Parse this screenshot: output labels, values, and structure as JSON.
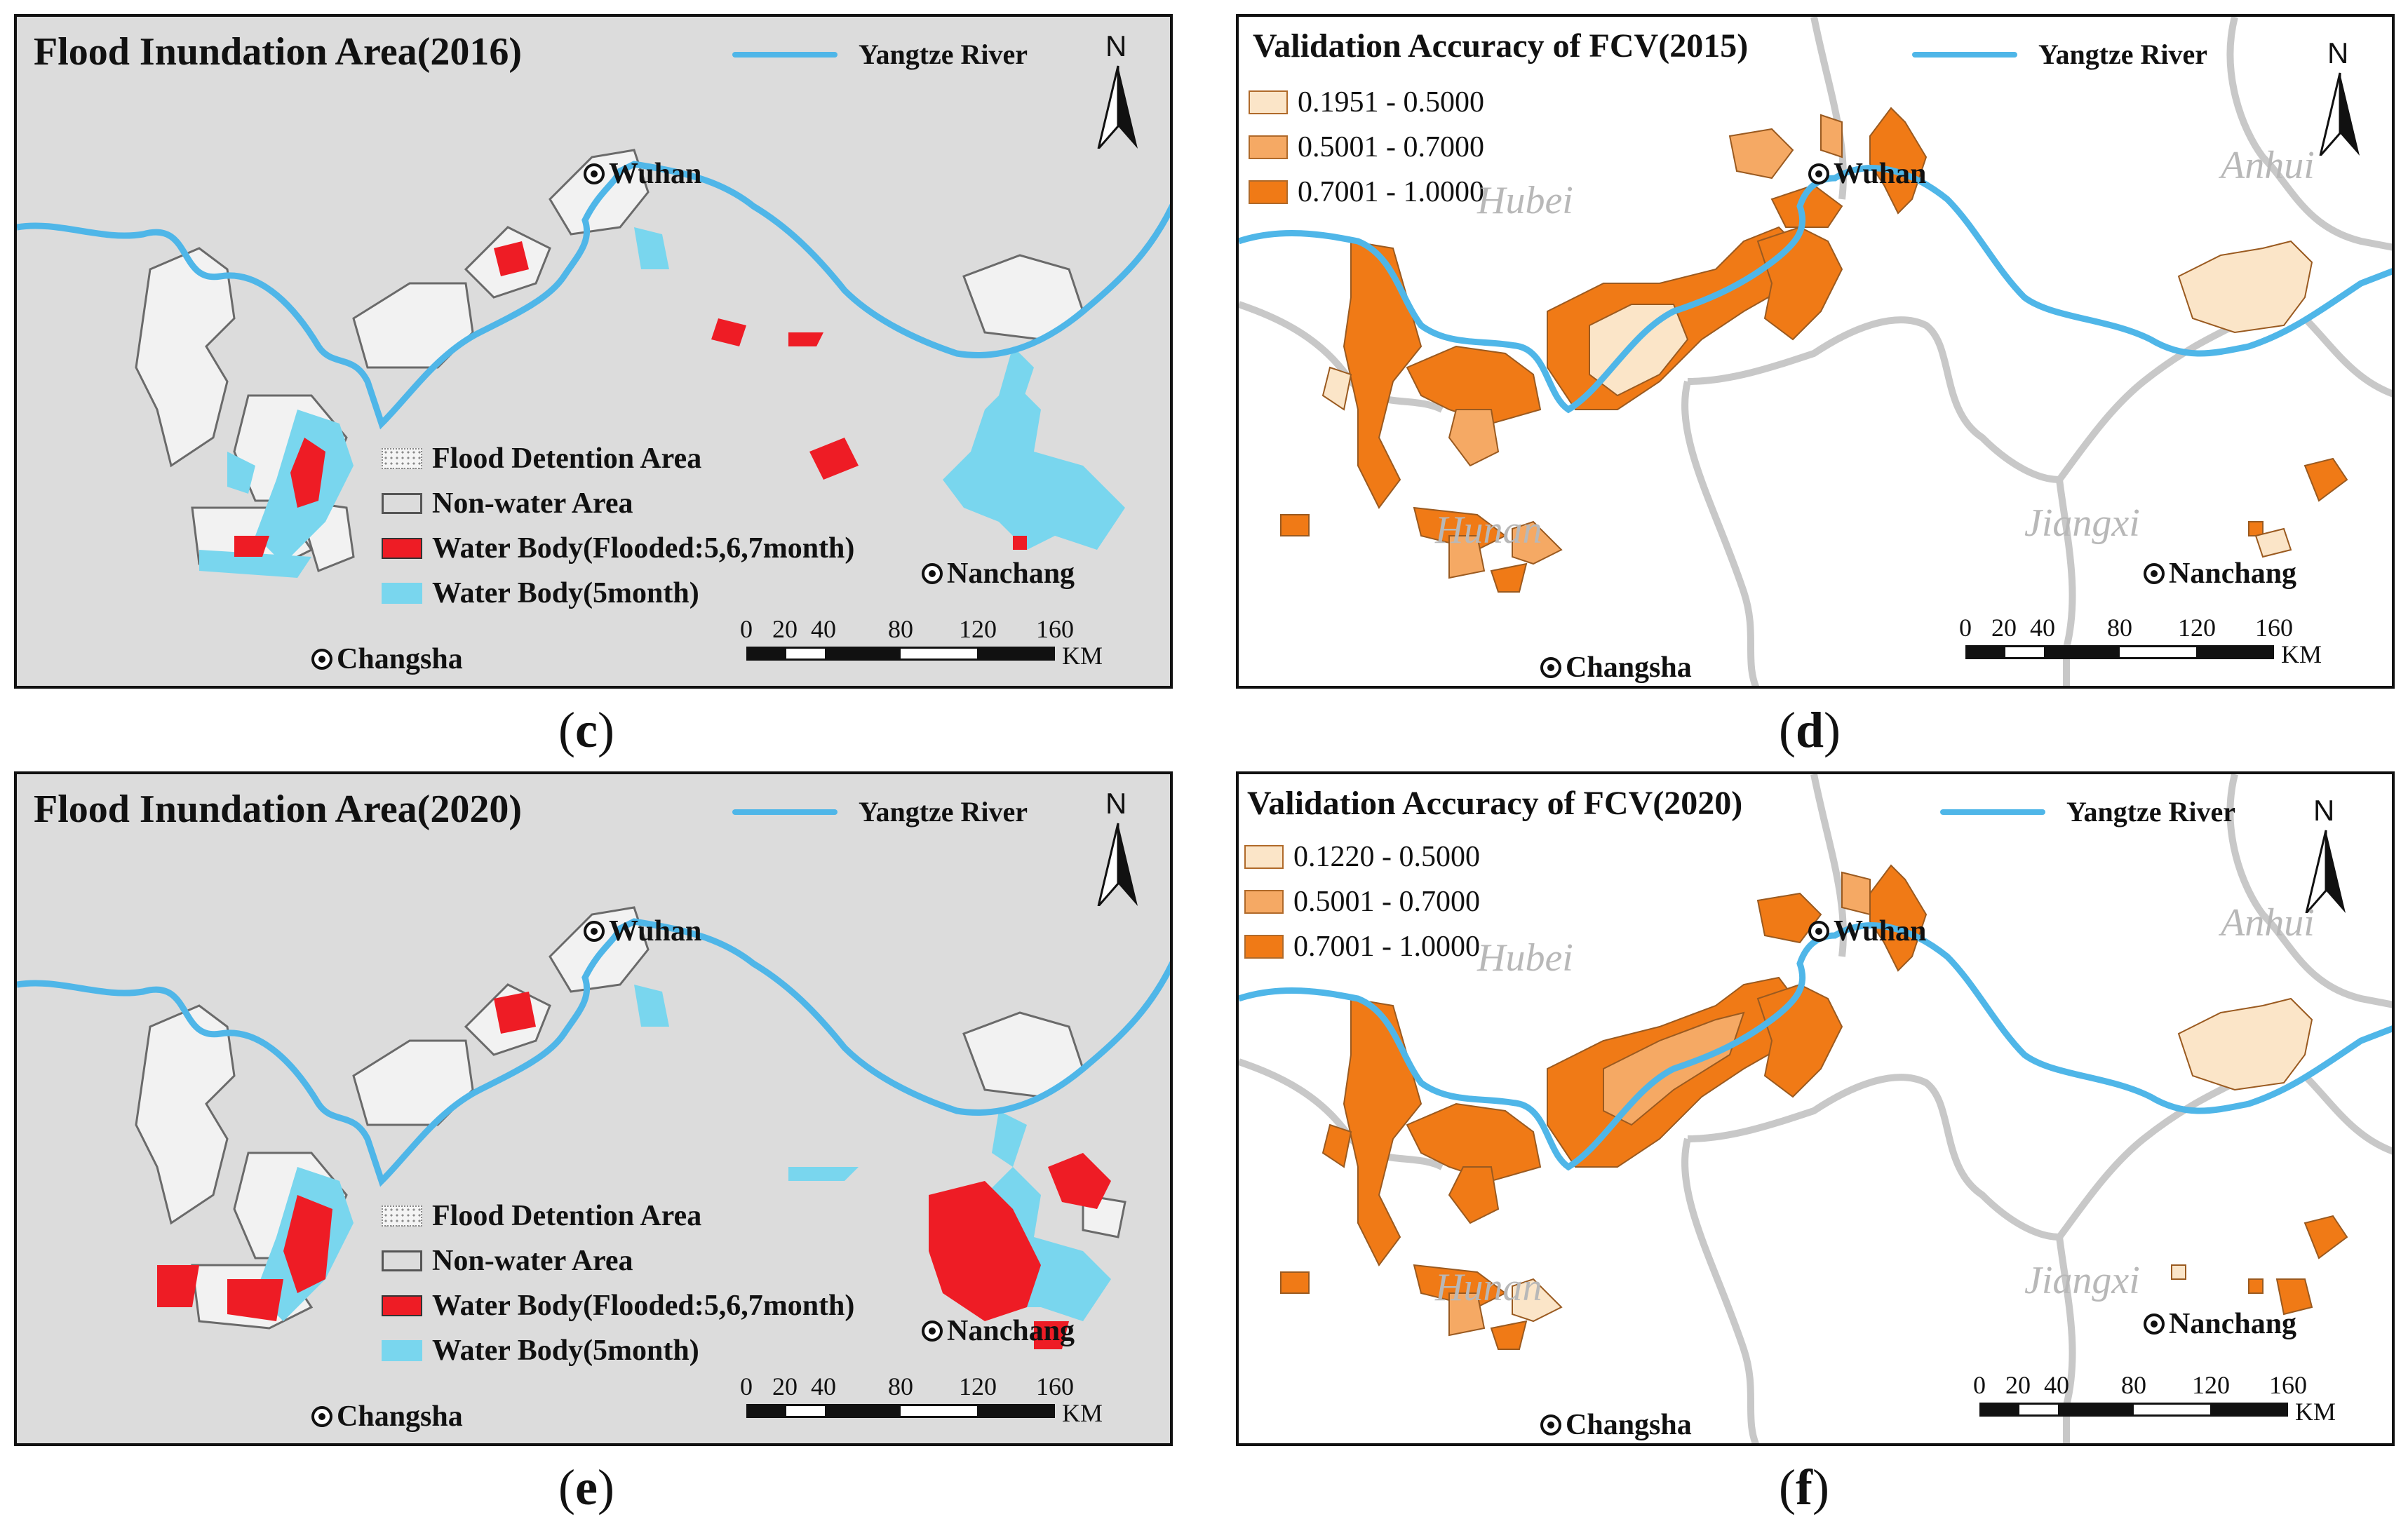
{
  "colors": {
    "map_background": "#dcdcdc",
    "river": "#4fb6e8",
    "flooded": "#ee1c25",
    "water_5month": "#79d6ee",
    "detention_fill": "#f2f2f2",
    "acc_low": "#fbe5c8",
    "acc_mid": "#f5a964",
    "acc_high": "#f07a16",
    "province_border": "#c8c8c8"
  },
  "panels": [
    {
      "id": "c",
      "type": "flood",
      "title": "Flood Inundation Area(2016)",
      "caption": "c",
      "river_legend": "Yangtze River",
      "north": "N",
      "legend": [
        {
          "label": "Flood Detention Area",
          "swatch": "detention"
        },
        {
          "label": "Non-water Area",
          "swatch": "nonwater"
        },
        {
          "label": "Water Body(Flooded:5,6,7month)",
          "swatch": "flooded"
        },
        {
          "label": "Water Body(5month)",
          "swatch": "water"
        }
      ],
      "scale": {
        "ticks": [
          "0",
          "20",
          "40",
          "80",
          "120",
          "160"
        ],
        "unit": "KM"
      },
      "cities": [
        "Wuhan",
        "Nanchang",
        "Changsha"
      ]
    },
    {
      "id": "d",
      "type": "validation",
      "title": "Validation Accuracy of FCV(2015)",
      "caption": "d",
      "river_legend": "Yangtze River",
      "north": "N",
      "legend": [
        {
          "label": "0.1951 - 0.5000",
          "swatch": "acc_low"
        },
        {
          "label": "0.5001 - 0.7000",
          "swatch": "acc_mid"
        },
        {
          "label": "0.7001 - 1.0000",
          "swatch": "acc_high"
        }
      ],
      "scale": {
        "ticks": [
          "0",
          "20",
          "40",
          "80",
          "120",
          "160"
        ],
        "unit": "KM"
      },
      "cities": [
        "Wuhan",
        "Nanchang",
        "Changsha"
      ],
      "provinces": [
        "Hubei",
        "Anhui",
        "Hunan",
        "Jiangxi"
      ]
    },
    {
      "id": "e",
      "type": "flood",
      "title": "Flood Inundation Area(2020)",
      "caption": "e",
      "river_legend": "Yangtze River",
      "north": "N",
      "legend": [
        {
          "label": "Flood Detention Area",
          "swatch": "detention"
        },
        {
          "label": "Non-water Area",
          "swatch": "nonwater"
        },
        {
          "label": "Water Body(Flooded:5,6,7month)",
          "swatch": "flooded"
        },
        {
          "label": "Water Body(5month)",
          "swatch": "water"
        }
      ],
      "scale": {
        "ticks": [
          "0",
          "20",
          "40",
          "80",
          "120",
          "160"
        ],
        "unit": "KM"
      },
      "cities": [
        "Wuhan",
        "Nanchang",
        "Changsha"
      ]
    },
    {
      "id": "f",
      "type": "validation",
      "title": "Validation Accuracy of FCV(2020)",
      "caption": "f",
      "river_legend": "Yangtze River",
      "north": "N",
      "legend": [
        {
          "label": "0.1220 - 0.5000",
          "swatch": "acc_low"
        },
        {
          "label": "0.5001 - 0.7000",
          "swatch": "acc_mid"
        },
        {
          "label": "0.7001 - 1.0000",
          "swatch": "acc_high"
        }
      ],
      "scale": {
        "ticks": [
          "0",
          "20",
          "40",
          "80",
          "120",
          "160"
        ],
        "unit": "KM"
      },
      "cities": [
        "Wuhan",
        "Nanchang",
        "Changsha"
      ],
      "provinces": [
        "Hubei",
        "Anhui",
        "Hunan",
        "Jiangxi"
      ]
    }
  ]
}
